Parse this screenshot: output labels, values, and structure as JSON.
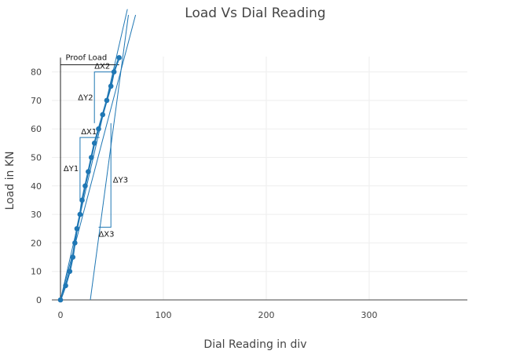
{
  "chart_data": {
    "type": "line",
    "title": "Load Vs Dial Reading",
    "xlabel": "Dial Reading in div",
    "ylabel": "Load in KN",
    "xlim": [
      -5,
      395
    ],
    "ylim": [
      -1,
      85
    ],
    "xticks": [
      0,
      100,
      200,
      300
    ],
    "yticks": [
      0,
      10,
      20,
      30,
      40,
      50,
      60,
      70,
      80
    ],
    "grid": true,
    "color": "#1f77b4",
    "series": [
      {
        "x": [
          0,
          5,
          9,
          12,
          14,
          16,
          19,
          21,
          24,
          27,
          30,
          33,
          37,
          41,
          45,
          49,
          52,
          57
        ],
        "y": [
          0,
          5,
          10,
          15,
          20,
          25,
          30,
          35,
          40,
          45,
          50,
          55,
          60,
          65,
          70,
          75,
          80,
          85
        ]
      }
    ],
    "reference_lines": [
      {
        "x": [
          0,
          65
        ],
        "y": [
          0,
          102
        ]
      },
      {
        "x": [
          0,
          73
        ],
        "y": [
          0,
          100
        ]
      },
      {
        "x": [
          29,
          66
        ],
        "y": [
          0,
          100
        ]
      },
      {
        "x": [
          0,
          57
        ],
        "y": [
          82.5,
          82.5
        ]
      },
      {
        "x": [
          0,
          0
        ],
        "y": [
          0,
          85
        ]
      }
    ],
    "construction": [
      {
        "x": [
          19,
          19,
          38
        ],
        "y": [
          35,
          57,
          57
        ]
      },
      {
        "x": [
          33,
          33,
          52
        ],
        "y": [
          62,
          80,
          80
        ]
      },
      {
        "x": [
          37,
          49,
          49
        ],
        "y": [
          25.5,
          25.5,
          62
        ]
      }
    ],
    "annotations": [
      {
        "text": "Proof Load",
        "x": 5,
        "y": 85
      },
      {
        "text": "ΔX2",
        "x": 33,
        "y": 82
      },
      {
        "text": "ΔY2",
        "x": 17,
        "y": 71
      },
      {
        "text": "ΔX1",
        "x": 20,
        "y": 59
      },
      {
        "text": "ΔY1",
        "x": 3,
        "y": 46
      },
      {
        "text": "ΔY3",
        "x": 51,
        "y": 42
      },
      {
        "text": "ΔX3",
        "x": 37,
        "y": 23
      }
    ]
  }
}
